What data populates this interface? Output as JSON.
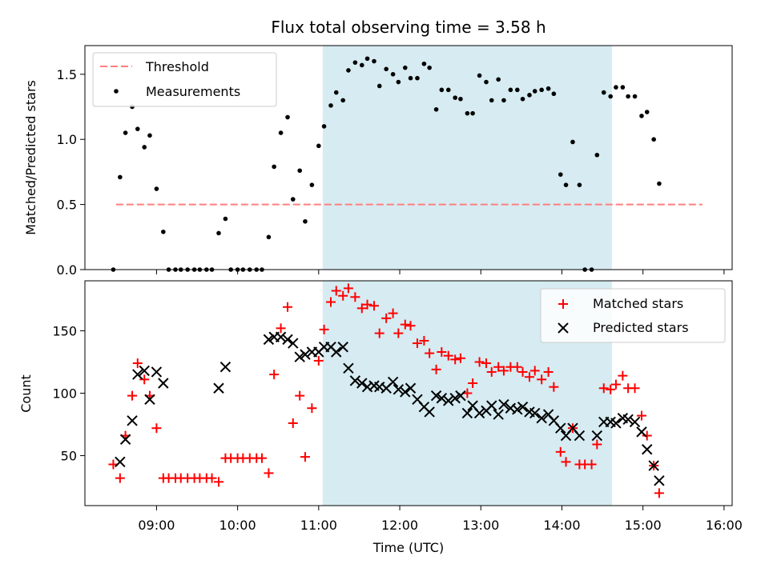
{
  "title": "Flux total observing time = 3.58 h",
  "colors": {
    "threshold": "#ff7f7f",
    "shade": "#add8e6",
    "matched": "#ff0000",
    "predicted": "#000000"
  },
  "chart_data": [
    {
      "type": "scatter",
      "ylabel": "Matched/Predicted stars",
      "ylim": [
        0,
        1.72
      ],
      "yticks": [
        "0.0",
        "0.5",
        "1.0",
        "1.5"
      ],
      "xlim": [
        "08:07",
        "16:06"
      ],
      "shaded_interval": [
        "11:03",
        "14:37"
      ],
      "legend": {
        "position": "top-left",
        "entries": [
          "Threshold",
          "Measurements"
        ]
      },
      "threshold": {
        "name": "Threshold",
        "value": 0.5,
        "x_range": [
          "08:30",
          "15:44"
        ]
      },
      "series": [
        {
          "name": "Measurements",
          "points": [
            [
              "08:28",
              0.0
            ],
            [
              "08:33",
              0.71
            ],
            [
              "08:37",
              1.05
            ],
            [
              "08:42",
              1.25
            ],
            [
              "08:46",
              1.08
            ],
            [
              "08:51",
              0.94
            ],
            [
              "08:55",
              1.03
            ],
            [
              "09:00",
              0.62
            ],
            [
              "09:05",
              0.29
            ],
            [
              "09:09",
              0.0
            ],
            [
              "09:14",
              0.0
            ],
            [
              "09:18",
              0.0
            ],
            [
              "09:23",
              0.0
            ],
            [
              "09:28",
              0.0
            ],
            [
              "09:32",
              0.0
            ],
            [
              "09:37",
              0.0
            ],
            [
              "09:41",
              0.0
            ],
            [
              "09:46",
              0.28
            ],
            [
              "09:51",
              0.39
            ],
            [
              "09:55",
              0.0
            ],
            [
              "10:00",
              0.0
            ],
            [
              "10:04",
              0.0
            ],
            [
              "10:09",
              0.0
            ],
            [
              "10:14",
              0.0
            ],
            [
              "10:18",
              0.0
            ],
            [
              "10:23",
              0.25
            ],
            [
              "10:27",
              0.79
            ],
            [
              "10:32",
              1.05
            ],
            [
              "10:37",
              1.17
            ],
            [
              "10:41",
              0.54
            ],
            [
              "10:46",
              0.76
            ],
            [
              "10:50",
              0.37
            ],
            [
              "10:55",
              0.65
            ],
            [
              "11:00",
              0.95
            ],
            [
              "11:04",
              1.1
            ],
            [
              "11:09",
              1.26
            ],
            [
              "11:13",
              1.36
            ],
            [
              "11:18",
              1.3
            ],
            [
              "11:22",
              1.53
            ],
            [
              "11:27",
              1.59
            ],
            [
              "11:32",
              1.57
            ],
            [
              "11:36",
              1.62
            ],
            [
              "11:41",
              1.6
            ],
            [
              "11:45",
              1.41
            ],
            [
              "11:50",
              1.54
            ],
            [
              "11:55",
              1.5
            ],
            [
              "11:59",
              1.44
            ],
            [
              "12:04",
              1.55
            ],
            [
              "12:08",
              1.47
            ],
            [
              "12:13",
              1.47
            ],
            [
              "12:18",
              1.58
            ],
            [
              "12:22",
              1.55
            ],
            [
              "12:27",
              1.23
            ],
            [
              "12:31",
              1.38
            ],
            [
              "12:36",
              1.38
            ],
            [
              "12:41",
              1.32
            ],
            [
              "12:45",
              1.31
            ],
            [
              "12:50",
              1.2
            ],
            [
              "12:54",
              1.2
            ],
            [
              "12:59",
              1.49
            ],
            [
              "13:04",
              1.44
            ],
            [
              "13:08",
              1.3
            ],
            [
              "13:13",
              1.46
            ],
            [
              "13:17",
              1.3
            ],
            [
              "13:22",
              1.38
            ],
            [
              "13:27",
              1.38
            ],
            [
              "13:31",
              1.31
            ],
            [
              "13:36",
              1.34
            ],
            [
              "13:40",
              1.37
            ],
            [
              "13:45",
              1.38
            ],
            [
              "13:50",
              1.39
            ],
            [
              "13:54",
              1.35
            ],
            [
              "13:59",
              0.73
            ],
            [
              "14:03",
              0.65
            ],
            [
              "14:08",
              0.98
            ],
            [
              "14:13",
              0.65
            ],
            [
              "14:17",
              0.0
            ],
            [
              "14:22",
              0.0
            ],
            [
              "14:26",
              0.88
            ],
            [
              "14:31",
              1.36
            ],
            [
              "14:36",
              1.33
            ],
            [
              "14:40",
              1.4
            ],
            [
              "14:45",
              1.4
            ],
            [
              "14:49",
              1.33
            ],
            [
              "14:54",
              1.33
            ],
            [
              "14:59",
              1.18
            ],
            [
              "15:03",
              1.21
            ],
            [
              "15:08",
              1.0
            ],
            [
              "15:12",
              0.66
            ]
          ]
        }
      ]
    },
    {
      "type": "scatter",
      "ylabel": "Count",
      "xlabel": "Time (UTC)",
      "ylim": [
        10,
        190
      ],
      "yticks": [
        "50",
        "100",
        "150"
      ],
      "xlim": [
        "08:07",
        "16:06"
      ],
      "xticks": [
        "09:00",
        "10:00",
        "11:00",
        "12:00",
        "13:00",
        "14:00",
        "15:00",
        "16:00"
      ],
      "shaded_interval": [
        "11:03",
        "14:37"
      ],
      "legend": {
        "position": "top-right",
        "entries": [
          "Matched stars",
          "Predicted stars"
        ]
      },
      "series": [
        {
          "name": "Matched stars",
          "marker": "plus",
          "points": [
            [
              "08:28",
              43
            ],
            [
              "08:33",
              32
            ],
            [
              "08:37",
              66
            ],
            [
              "08:42",
              98
            ],
            [
              "08:46",
              124
            ],
            [
              "08:51",
              111
            ],
            [
              "08:55",
              98
            ],
            [
              "09:00",
              72
            ],
            [
              "09:05",
              32
            ],
            [
              "09:09",
              32
            ],
            [
              "09:14",
              32
            ],
            [
              "09:18",
              32
            ],
            [
              "09:23",
              32
            ],
            [
              "09:28",
              32
            ],
            [
              "09:32",
              32
            ],
            [
              "09:37",
              32
            ],
            [
              "09:41",
              32
            ],
            [
              "09:46",
              29
            ],
            [
              "09:51",
              48
            ],
            [
              "09:55",
              48
            ],
            [
              "10:00",
              48
            ],
            [
              "10:04",
              48
            ],
            [
              "10:09",
              48
            ],
            [
              "10:14",
              48
            ],
            [
              "10:18",
              48
            ],
            [
              "10:23",
              36
            ],
            [
              "10:27",
              115
            ],
            [
              "10:32",
              152
            ],
            [
              "10:37",
              169
            ],
            [
              "10:41",
              76
            ],
            [
              "10:46",
              98
            ],
            [
              "10:50",
              49
            ],
            [
              "10:55",
              88
            ],
            [
              "11:00",
              126
            ],
            [
              "11:04",
              151
            ],
            [
              "11:09",
              173
            ],
            [
              "11:13",
              182
            ],
            [
              "11:18",
              178
            ],
            [
              "11:22",
              184
            ],
            [
              "11:27",
              177
            ],
            [
              "11:32",
              168
            ],
            [
              "11:36",
              171
            ],
            [
              "11:41",
              170
            ],
            [
              "11:45",
              148
            ],
            [
              "11:50",
              160
            ],
            [
              "11:55",
              164
            ],
            [
              "11:59",
              148
            ],
            [
              "12:04",
              155
            ],
            [
              "12:08",
              154
            ],
            [
              "12:13",
              140
            ],
            [
              "12:18",
              142
            ],
            [
              "12:22",
              132
            ],
            [
              "12:27",
              119
            ],
            [
              "12:31",
              133
            ],
            [
              "12:36",
              130
            ],
            [
              "12:41",
              127
            ],
            [
              "12:45",
              128
            ],
            [
              "12:50",
              100
            ],
            [
              "12:54",
              108
            ],
            [
              "12:59",
              125
            ],
            [
              "13:04",
              124
            ],
            [
              "13:08",
              117
            ],
            [
              "13:13",
              121
            ],
            [
              "13:17",
              118
            ],
            [
              "13:22",
              121
            ],
            [
              "13:27",
              121
            ],
            [
              "13:31",
              117
            ],
            [
              "13:36",
              113
            ],
            [
              "13:40",
              118
            ],
            [
              "13:45",
              111
            ],
            [
              "13:50",
              117
            ],
            [
              "13:54",
              105
            ],
            [
              "13:59",
              53
            ],
            [
              "14:03",
              45
            ],
            [
              "14:08",
              72
            ],
            [
              "14:13",
              43
            ],
            [
              "14:17",
              43
            ],
            [
              "14:22",
              43
            ],
            [
              "14:26",
              59
            ],
            [
              "14:31",
              104
            ],
            [
              "14:36",
              103
            ],
            [
              "14:40",
              107
            ],
            [
              "14:45",
              114
            ],
            [
              "14:49",
              104
            ],
            [
              "14:54",
              104
            ],
            [
              "14:59",
              82
            ],
            [
              "15:03",
              66
            ],
            [
              "15:08",
              42
            ],
            [
              "15:12",
              20
            ]
          ]
        },
        {
          "name": "Predicted stars",
          "marker": "x",
          "points": [
            [
              "08:33",
              45
            ],
            [
              "08:37",
              63
            ],
            [
              "08:42",
              78
            ],
            [
              "08:46",
              115
            ],
            [
              "08:51",
              118
            ],
            [
              "08:55",
              95
            ],
            [
              "09:00",
              117
            ],
            [
              "09:05",
              108
            ],
            [
              "09:46",
              104
            ],
            [
              "09:51",
              121
            ],
            [
              "10:23",
              143
            ],
            [
              "10:27",
              145
            ],
            [
              "10:32",
              145
            ],
            [
              "10:37",
              143
            ],
            [
              "10:41",
              140
            ],
            [
              "10:46",
              129
            ],
            [
              "10:50",
              131
            ],
            [
              "10:55",
              133
            ],
            [
              "11:00",
              133
            ],
            [
              "11:04",
              137
            ],
            [
              "11:09",
              137
            ],
            [
              "11:13",
              133
            ],
            [
              "11:18",
              137
            ],
            [
              "11:22",
              120
            ],
            [
              "11:27",
              110
            ],
            [
              "11:32",
              108
            ],
            [
              "11:36",
              105
            ],
            [
              "11:41",
              106
            ],
            [
              "11:45",
              105
            ],
            [
              "11:50",
              104
            ],
            [
              "11:55",
              109
            ],
            [
              "11:59",
              103
            ],
            [
              "12:04",
              101
            ],
            [
              "12:08",
              104
            ],
            [
              "12:13",
              95
            ],
            [
              "12:18",
              89
            ],
            [
              "12:22",
              85
            ],
            [
              "12:27",
              98
            ],
            [
              "12:31",
              96
            ],
            [
              "12:36",
              94
            ],
            [
              "12:41",
              96
            ],
            [
              "12:45",
              98
            ],
            [
              "12:50",
              84
            ],
            [
              "12:54",
              90
            ],
            [
              "12:59",
              84
            ],
            [
              "13:04",
              86
            ],
            [
              "13:08",
              90
            ],
            [
              "13:13",
              83
            ],
            [
              "13:17",
              91
            ],
            [
              "13:22",
              88
            ],
            [
              "13:27",
              87
            ],
            [
              "13:31",
              89
            ],
            [
              "13:36",
              85
            ],
            [
              "13:40",
              84
            ],
            [
              "13:45",
              80
            ],
            [
              "13:50",
              83
            ],
            [
              "13:54",
              78
            ],
            [
              "13:59",
              72
            ],
            [
              "14:03",
              66
            ],
            [
              "14:08",
              72
            ],
            [
              "14:13",
              66
            ],
            [
              "14:26",
              66
            ],
            [
              "14:31",
              77
            ],
            [
              "14:36",
              77
            ],
            [
              "14:40",
              76
            ],
            [
              "14:45",
              80
            ],
            [
              "14:49",
              79
            ],
            [
              "14:54",
              77
            ],
            [
              "14:59",
              69
            ],
            [
              "15:03",
              55
            ],
            [
              "15:08",
              42
            ],
            [
              "15:12",
              30
            ]
          ]
        }
      ]
    }
  ]
}
